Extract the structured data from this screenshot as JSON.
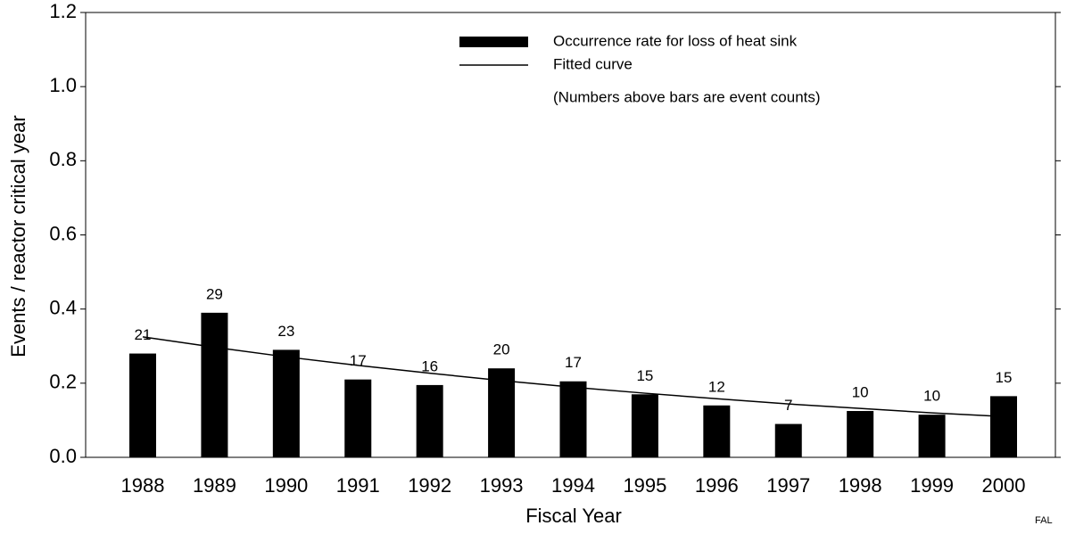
{
  "chart_data": {
    "type": "bar",
    "x_label": "Fiscal Year",
    "y_label": "Events / reactor critical year",
    "note": "(Numbers above bars are event counts)",
    "corner_label": "FAL",
    "categories": [
      "1988",
      "1989",
      "1990",
      "1991",
      "1992",
      "1993",
      "1994",
      "1995",
      "1996",
      "1997",
      "1998",
      "1999",
      "2000"
    ],
    "series": [
      {
        "name": "Occurrence rate for loss of heat sink",
        "type": "bar",
        "color": "#000000",
        "values": [
          0.28,
          0.39,
          0.29,
          0.21,
          0.195,
          0.24,
          0.205,
          0.17,
          0.14,
          0.09,
          0.125,
          0.115,
          0.165
        ]
      },
      {
        "name": "Fitted curve",
        "type": "line",
        "color": "#000000",
        "values": [
          0.325,
          0.297,
          0.271,
          0.248,
          0.227,
          0.207,
          0.189,
          0.173,
          0.158,
          0.144,
          0.132,
          0.12,
          0.11
        ]
      }
    ],
    "event_counts": [
      21,
      29,
      23,
      17,
      16,
      20,
      17,
      15,
      12,
      7,
      10,
      10,
      15
    ],
    "ylim": [
      0,
      1.2
    ],
    "yticks": [
      {
        "value": 0,
        "label": "0.0"
      },
      0.2,
      0.4,
      0.6,
      0.8,
      {
        "value": 1,
        "label": "1.0"
      },
      1.2
    ],
    "grid": false,
    "legend": "top"
  }
}
